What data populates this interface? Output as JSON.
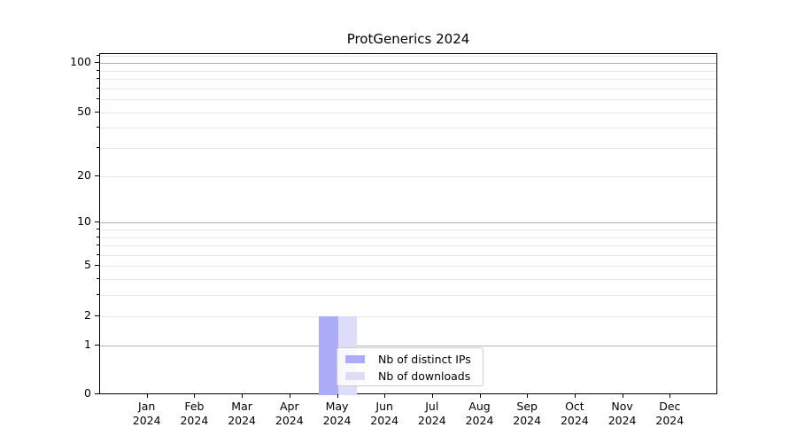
{
  "chart_data": {
    "type": "bar",
    "title": "ProtGenerics 2024",
    "categories": [
      "Jan 2024",
      "Feb 2024",
      "Mar 2024",
      "Apr 2024",
      "May 2024",
      "Jun 2024",
      "Jul 2024",
      "Aug 2024",
      "Sep 2024",
      "Oct 2024",
      "Nov 2024",
      "Dec 2024"
    ],
    "series": [
      {
        "name": "Nb of distinct IPs",
        "color": "#ababf6",
        "values": [
          0,
          0,
          0,
          0,
          2,
          0,
          0,
          0,
          0,
          0,
          0,
          0
        ]
      },
      {
        "name": "Nb of downloads",
        "color": "#ddddf9",
        "values": [
          0,
          0,
          0,
          0,
          2,
          0,
          0,
          0,
          0,
          0,
          0,
          0
        ]
      }
    ],
    "xlabel": "",
    "ylabel": "",
    "yscale": "log1p",
    "yticks": [
      0,
      1,
      2,
      5,
      10,
      20,
      50,
      100
    ],
    "ylim": [
      0,
      113
    ],
    "major_gridlines": [
      1,
      10,
      100
    ],
    "minor_gridlines": [
      2,
      3,
      4,
      5,
      6,
      7,
      8,
      9,
      20,
      30,
      40,
      50,
      60,
      70,
      80,
      90,
      110
    ],
    "grid": true,
    "legend": {
      "position": "lower-center-inside"
    },
    "colors": {
      "major_grid": "#b0b0b0",
      "minor_grid": "#e7e7e7",
      "spine": "#000000",
      "text": "#000000",
      "legend_border": "#cccccc"
    }
  }
}
